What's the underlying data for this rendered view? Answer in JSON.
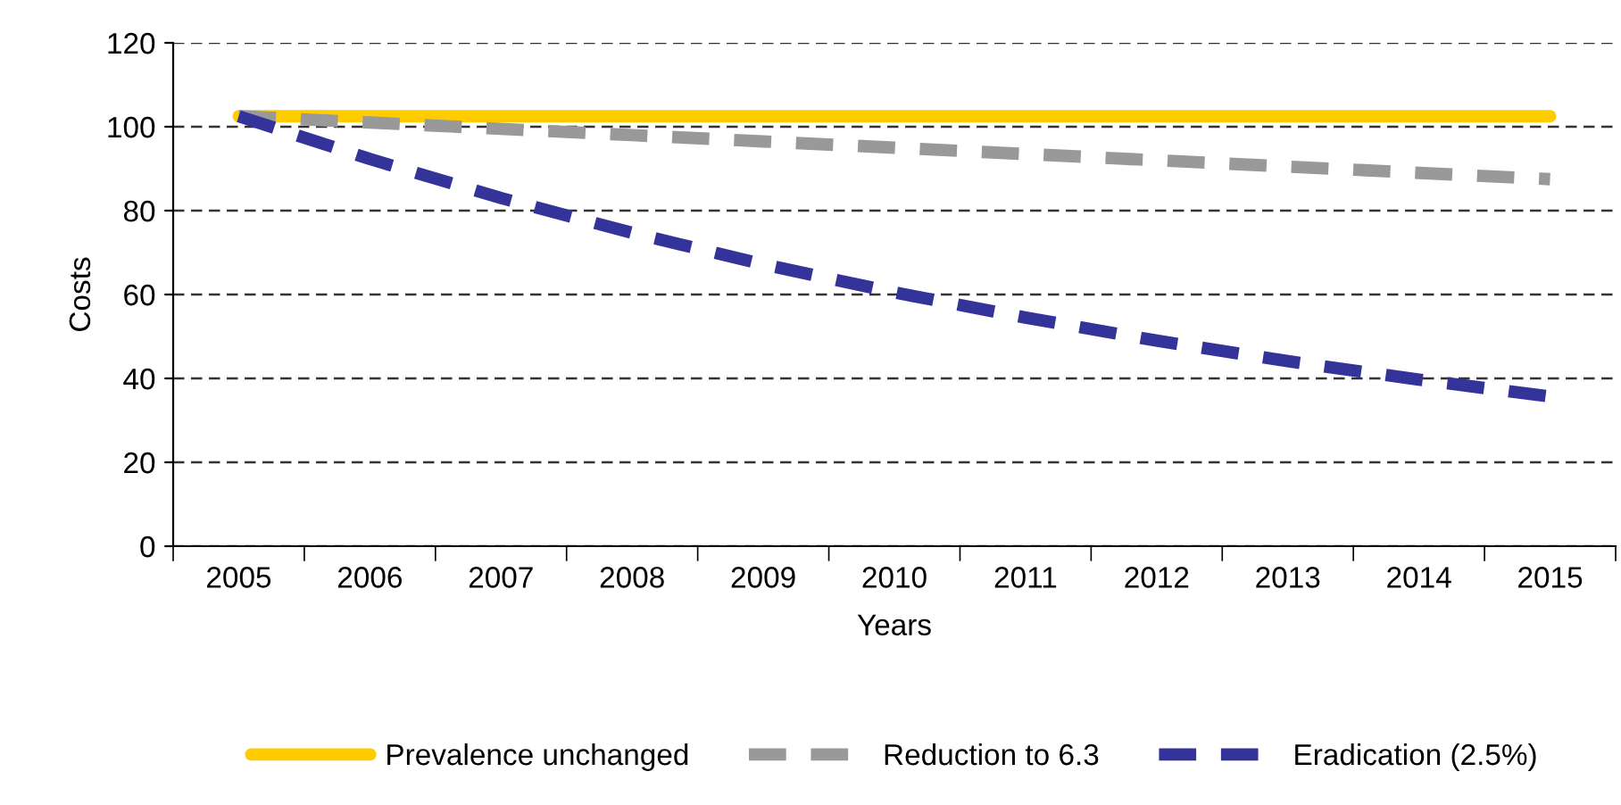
{
  "chart_data": {
    "type": "line",
    "xlabel": "Years",
    "ylabel": "Costs",
    "categories": [
      "2005",
      "2006",
      "2007",
      "2008",
      "2009",
      "2010",
      "2011",
      "2012",
      "2013",
      "2014",
      "2015"
    ],
    "series": [
      {
        "name": "Prevalence unchanged",
        "color": "#ffcc00",
        "line_style": "solid",
        "values": [
          102.5,
          102.5,
          102.5,
          102.5,
          102.5,
          102.5,
          102.5,
          102.5,
          102.5,
          102.5,
          102.5
        ]
      },
      {
        "name": "Reduction to 6.3",
        "color": "#999999",
        "line_style": "dashed",
        "values": [
          102.5,
          101,
          99.5,
          98,
          96.5,
          95,
          93.5,
          92,
          90.5,
          89,
          87.5
        ]
      },
      {
        "name": "Eradication (2.5%)",
        "color": "#333399",
        "line_style": "dashed",
        "values": [
          102.5,
          92.3,
          83,
          74.7,
          67.2,
          60.5,
          54.5,
          49,
          44.1,
          39.7,
          35.7
        ]
      }
    ],
    "ylim": [
      0,
      120
    ],
    "yticks": [
      0,
      20,
      40,
      60,
      80,
      100,
      120
    ],
    "grid": "y",
    "legend": "bottom",
    "marker": "none"
  }
}
